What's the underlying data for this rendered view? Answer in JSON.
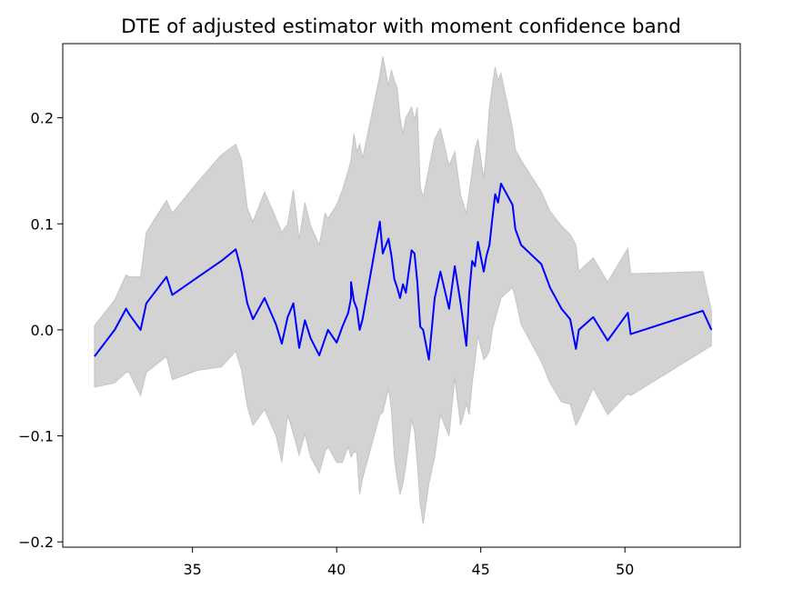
{
  "chart_data": {
    "type": "line",
    "title": "DTE of adjusted estimator with moment confidence band",
    "xlabel": "",
    "ylabel": "",
    "xlim": [
      30.5,
      54.0
    ],
    "ylim": [
      -0.205,
      0.27
    ],
    "xticks": [
      35,
      40,
      45,
      50
    ],
    "xtick_labels": [
      "35",
      "40",
      "45",
      "50"
    ],
    "yticks": [
      -0.2,
      -0.1,
      0.0,
      0.1,
      0.2
    ],
    "ytick_labels": [
      "−0.2",
      "−0.1",
      "0.0",
      "0.1",
      "0.2"
    ],
    "grid": false,
    "legend": "none",
    "colors": {
      "line": "#0000ff",
      "band": "#d3d3d3",
      "band_edge": "#c4c4c4",
      "axes": "#000000"
    },
    "series": [
      {
        "type": "line",
        "x": [
          31.6,
          32.3,
          32.7,
          32.8,
          33.2,
          33.4,
          34.1,
          34.3,
          35.2,
          36.0,
          36.5,
          36.7,
          36.9,
          37.1,
          37.5,
          37.9,
          38.1,
          38.3,
          38.5,
          38.7,
          38.9,
          39.1,
          39.4,
          39.6,
          39.7,
          40.0,
          40.2,
          40.4,
          40.5,
          40.5,
          40.6,
          40.7,
          40.8,
          40.9,
          41.5,
          41.6,
          41.8,
          41.9,
          42.0,
          42.1,
          42.2,
          42.3,
          42.4,
          42.6,
          42.7,
          42.8,
          42.9,
          43.0,
          43.2,
          43.4,
          43.6,
          43.9,
          44.1,
          44.3,
          44.5,
          44.6,
          44.7,
          44.8,
          44.9,
          45.1,
          45.2,
          45.3,
          45.4,
          45.5,
          45.6,
          45.7,
          46.1,
          46.2,
          46.4,
          47.1,
          47.4,
          47.8,
          48.1,
          48.3,
          48.4,
          48.9,
          49.4,
          50.1,
          50.2,
          52.7,
          53.0
        ],
        "y": [
          -0.025,
          0.0,
          0.02,
          0.015,
          0.0,
          0.025,
          0.05,
          0.033,
          0.05,
          0.065,
          0.076,
          0.055,
          0.025,
          0.01,
          0.03,
          0.005,
          -0.013,
          0.012,
          0.025,
          -0.017,
          0.009,
          -0.008,
          -0.024,
          -0.008,
          0.0,
          -0.012,
          0.003,
          0.016,
          0.03,
          0.045,
          0.027,
          0.02,
          0.0,
          0.01,
          0.102,
          0.072,
          0.086,
          0.07,
          0.048,
          0.04,
          0.03,
          0.043,
          0.035,
          0.075,
          0.072,
          0.045,
          0.003,
          0.0,
          -0.028,
          0.03,
          0.055,
          0.02,
          0.06,
          0.025,
          -0.015,
          0.035,
          0.065,
          0.06,
          0.083,
          0.055,
          0.07,
          0.08,
          0.105,
          0.128,
          0.12,
          0.138,
          0.118,
          0.095,
          0.08,
          0.062,
          0.04,
          0.02,
          0.01,
          -0.018,
          0.0,
          0.012,
          -0.01,
          0.016,
          -0.004,
          0.018,
          0.0
        ]
      }
    ],
    "band": {
      "x": [
        31.6,
        32.3,
        32.7,
        32.8,
        33.2,
        33.4,
        34.1,
        34.3,
        35.2,
        36.0,
        36.5,
        36.7,
        36.9,
        37.1,
        37.5,
        37.9,
        38.1,
        38.3,
        38.5,
        38.7,
        38.9,
        39.1,
        39.4,
        39.6,
        39.7,
        40.0,
        40.2,
        40.4,
        40.5,
        40.6,
        40.7,
        40.8,
        40.9,
        41.5,
        41.6,
        41.8,
        41.9,
        42.0,
        42.1,
        42.2,
        42.3,
        42.4,
        42.6,
        42.7,
        42.8,
        42.9,
        43.0,
        43.2,
        43.4,
        43.6,
        43.9,
        44.1,
        44.3,
        44.5,
        44.6,
        44.7,
        44.8,
        44.9,
        45.1,
        45.2,
        45.3,
        45.4,
        45.5,
        45.6,
        45.7,
        46.1,
        46.2,
        46.4,
        47.1,
        47.4,
        47.8,
        48.1,
        48.3,
        48.4,
        48.9,
        49.4,
        50.1,
        50.2,
        52.7,
        53.0
      ],
      "upper": [
        0.004,
        0.028,
        0.052,
        0.05,
        0.05,
        0.092,
        0.122,
        0.11,
        0.14,
        0.165,
        0.175,
        0.16,
        0.115,
        0.102,
        0.13,
        0.105,
        0.092,
        0.1,
        0.132,
        0.085,
        0.12,
        0.098,
        0.08,
        0.11,
        0.105,
        0.118,
        0.132,
        0.15,
        0.16,
        0.185,
        0.168,
        0.175,
        0.162,
        0.24,
        0.258,
        0.23,
        0.245,
        0.235,
        0.228,
        0.2,
        0.185,
        0.2,
        0.21,
        0.198,
        0.21,
        0.135,
        0.125,
        0.152,
        0.18,
        0.19,
        0.155,
        0.168,
        0.127,
        0.11,
        0.13,
        0.15,
        0.17,
        0.18,
        0.143,
        0.17,
        0.21,
        0.23,
        0.248,
        0.235,
        0.242,
        0.19,
        0.17,
        0.16,
        0.13,
        0.112,
        0.098,
        0.09,
        0.08,
        0.055,
        0.068,
        0.045,
        0.077,
        0.053,
        0.055,
        0.018
      ],
      "lower": [
        -0.054,
        -0.05,
        -0.04,
        -0.04,
        -0.062,
        -0.04,
        -0.025,
        -0.047,
        -0.038,
        -0.035,
        -0.02,
        -0.038,
        -0.072,
        -0.09,
        -0.075,
        -0.1,
        -0.125,
        -0.08,
        -0.098,
        -0.118,
        -0.098,
        -0.12,
        -0.135,
        -0.115,
        -0.11,
        -0.125,
        -0.125,
        -0.11,
        -0.12,
        -0.115,
        -0.116,
        -0.155,
        -0.14,
        -0.08,
        -0.078,
        -0.055,
        -0.075,
        -0.12,
        -0.14,
        -0.155,
        -0.145,
        -0.128,
        -0.085,
        -0.095,
        -0.125,
        -0.165,
        -0.183,
        -0.145,
        -0.12,
        -0.08,
        -0.1,
        -0.045,
        -0.09,
        -0.07,
        -0.08,
        -0.05,
        -0.03,
        -0.005,
        -0.028,
        -0.025,
        -0.02,
        0.0,
        0.01,
        0.02,
        0.03,
        0.04,
        0.03,
        0.005,
        -0.03,
        -0.05,
        -0.068,
        -0.07,
        -0.09,
        -0.085,
        -0.055,
        -0.08,
        -0.06,
        -0.062,
        -0.02,
        -0.015
      ]
    }
  }
}
